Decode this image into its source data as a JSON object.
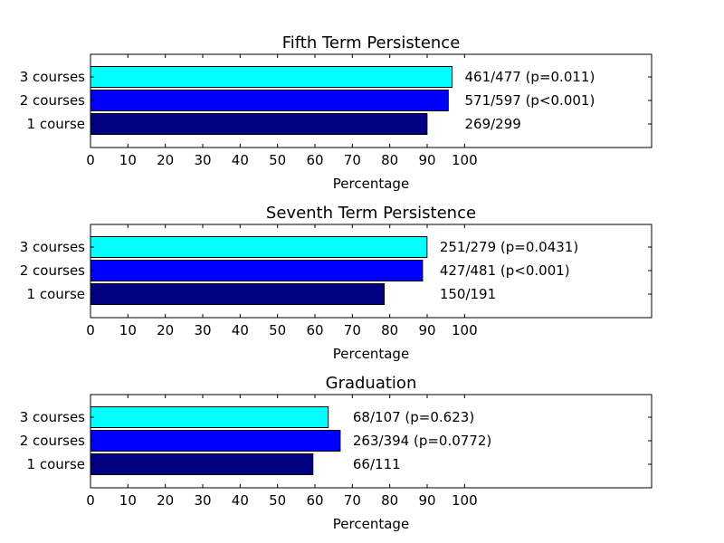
{
  "chart_data": [
    {
      "type": "bar",
      "orientation": "horizontal",
      "title": "Fifth Term Persistence",
      "xlabel": "Percentage",
      "categories": [
        "1 course",
        "2 courses",
        "3 courses"
      ],
      "values": [
        89.97,
        95.64,
        96.65
      ],
      "annotations": [
        "269/299",
        "571/597 (p<0.001)",
        "461/477 (p=0.011)"
      ],
      "colors": [
        "#000080",
        "#0000ff",
        "#00ffff"
      ],
      "xticks": [
        "0",
        "10",
        "20",
        "30",
        "40",
        "50",
        "60",
        "70",
        "80",
        "90",
        "100"
      ],
      "xlim": [
        0,
        150
      ],
      "grid": false
    },
    {
      "type": "bar",
      "orientation": "horizontal",
      "title": "Seventh Term Persistence",
      "xlabel": "Percentage",
      "categories": [
        "1 course",
        "2 courses",
        "3 courses"
      ],
      "values": [
        78.53,
        88.77,
        89.96
      ],
      "annotations": [
        "150/191",
        "427/481 (p<0.001)",
        "251/279 (p=0.0431)"
      ],
      "colors": [
        "#000080",
        "#0000ff",
        "#00ffff"
      ],
      "xticks": [
        "0",
        "10",
        "20",
        "30",
        "40",
        "50",
        "60",
        "70",
        "80",
        "90",
        "100"
      ],
      "xlim": [
        0,
        150
      ],
      "grid": false
    },
    {
      "type": "bar",
      "orientation": "horizontal",
      "title": "Graduation",
      "xlabel": "Percentage",
      "categories": [
        "1 course",
        "2 courses",
        "3 courses"
      ],
      "values": [
        59.46,
        66.75,
        63.55
      ],
      "annotations": [
        "66/111",
        "263/394 (p=0.0772)",
        "68/107 (p=0.623)"
      ],
      "colors": [
        "#000080",
        "#0000ff",
        "#00ffff"
      ],
      "xticks": [
        "0",
        "10",
        "20",
        "30",
        "40",
        "50",
        "60",
        "70",
        "80",
        "90",
        "100"
      ],
      "xlim": [
        0,
        150
      ],
      "grid": false
    }
  ]
}
